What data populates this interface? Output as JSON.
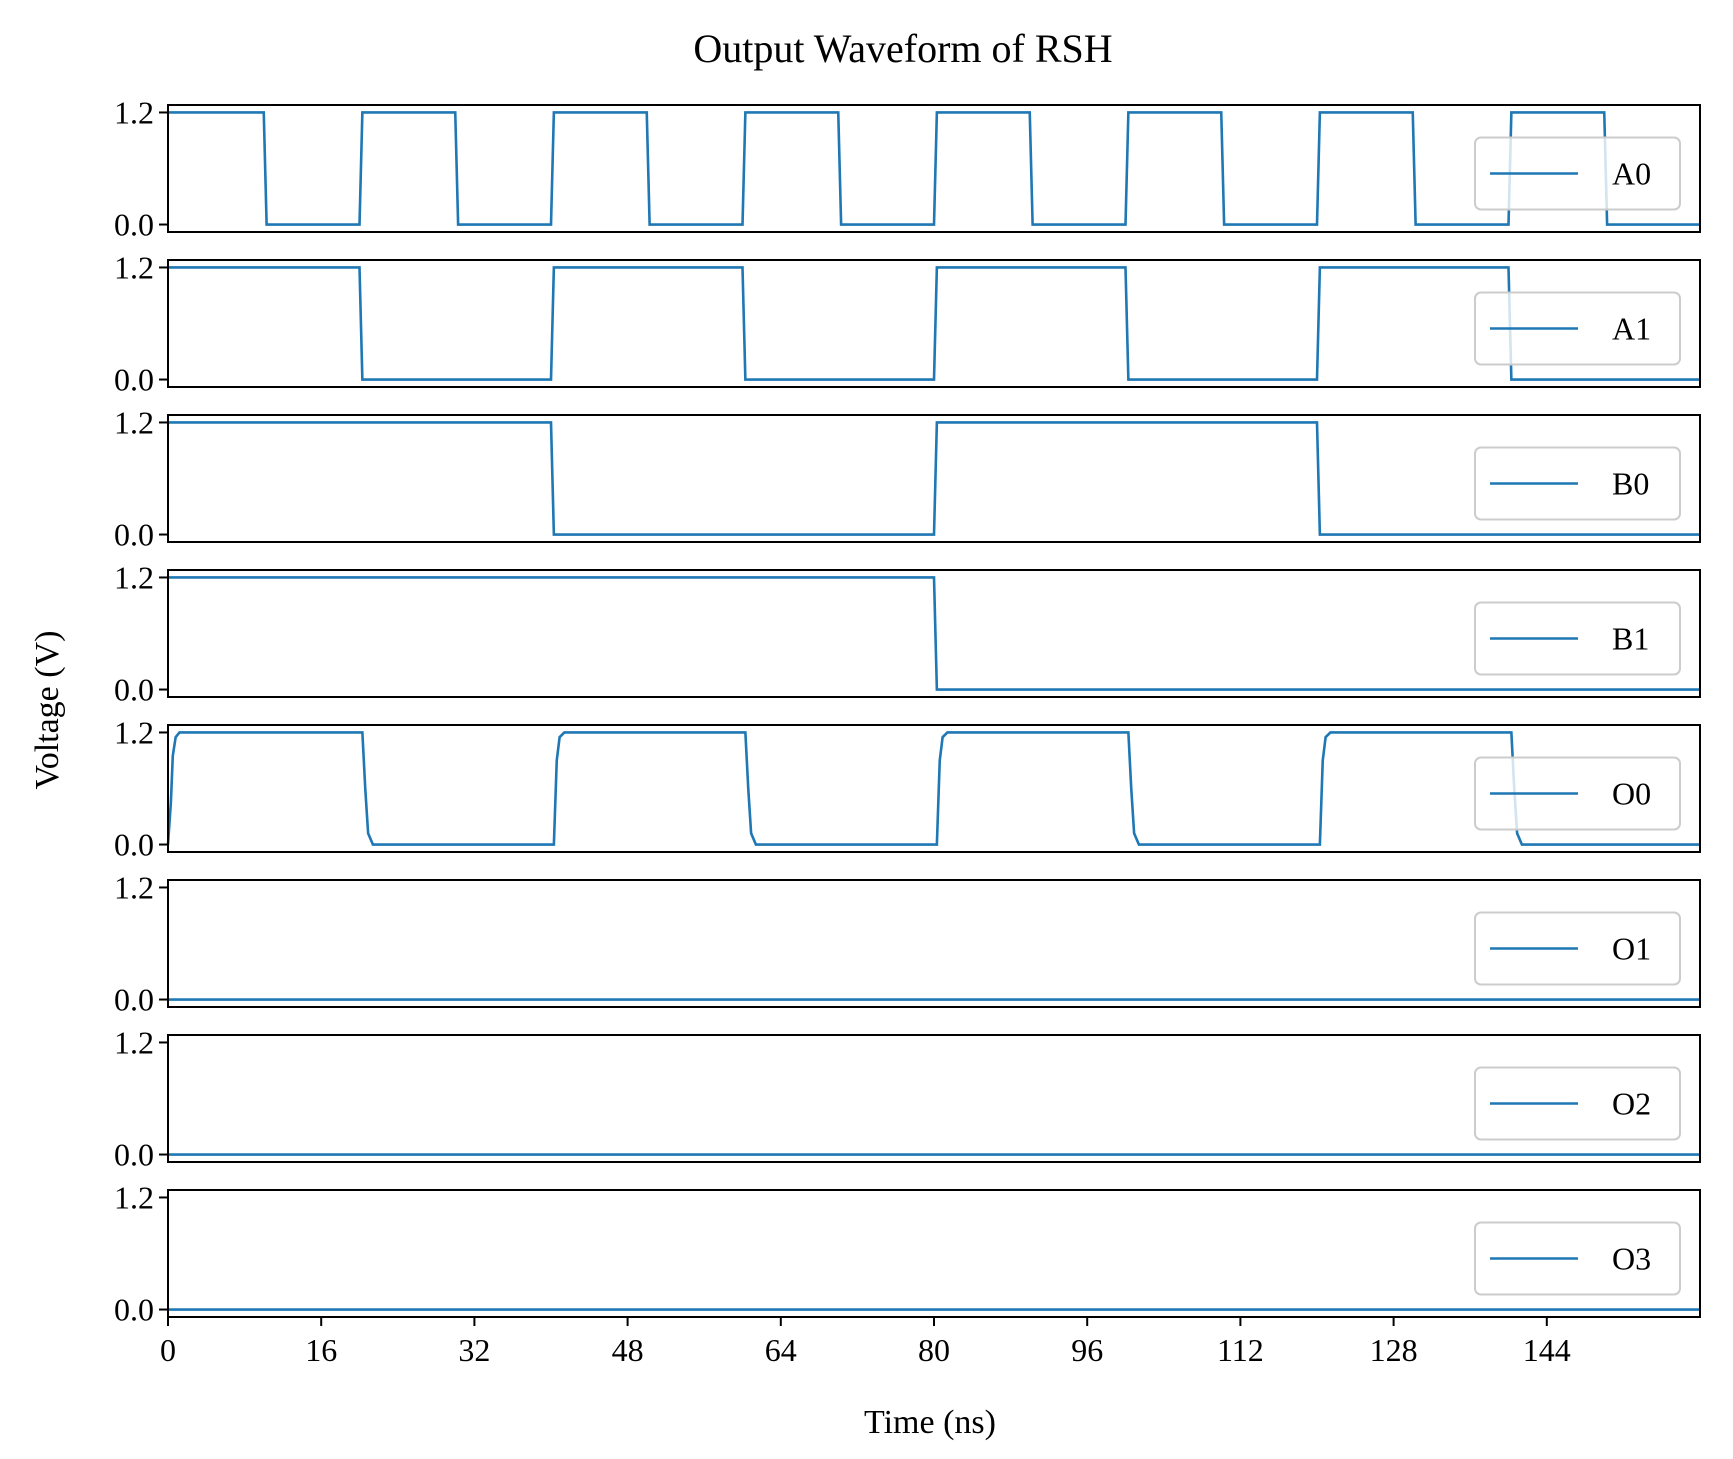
{
  "chart_data": {
    "type": "line",
    "title": "Output Waveform of RSH",
    "xlabel": "Time (ns)",
    "ylabel": "Voltage (V)",
    "xlim": [
      0,
      160
    ],
    "ylim": [
      -0.08,
      1.28
    ],
    "x_ticks": [
      0,
      16,
      32,
      48,
      64,
      80,
      96,
      112,
      128,
      144
    ],
    "x_tick_labels": [
      "0",
      "16",
      "32",
      "48",
      "64",
      "80",
      "96",
      "112",
      "128",
      "144"
    ],
    "y_ticks": [
      0.0,
      1.2
    ],
    "y_tick_labels": [
      "0.0",
      "1.2"
    ],
    "legend_position": "center right",
    "line_color": "#1f77b4",
    "series": [
      {
        "name": "A0",
        "x": [
          0,
          10,
          10.3,
          20,
          20.3,
          30,
          30.3,
          40,
          40.3,
          50,
          50.3,
          60,
          60.3,
          70,
          70.3,
          80,
          80.3,
          90,
          90.3,
          100,
          100.3,
          110,
          110.3,
          120,
          120.3,
          130,
          130.3,
          140,
          140.3,
          150,
          150.3,
          160
        ],
        "y": [
          1.2,
          1.2,
          0.0,
          0.0,
          1.2,
          1.2,
          0.0,
          0.0,
          1.2,
          1.2,
          0.0,
          0.0,
          1.2,
          1.2,
          0.0,
          0.0,
          1.2,
          1.2,
          0.0,
          0.0,
          1.2,
          1.2,
          0.0,
          0.0,
          1.2,
          1.2,
          0.0,
          0.0,
          1.2,
          1.2,
          0.0,
          0.0
        ]
      },
      {
        "name": "A1",
        "x": [
          0,
          20,
          20.3,
          40,
          40.3,
          60,
          60.3,
          80,
          80.3,
          100,
          100.3,
          120,
          120.3,
          140,
          140.3,
          160
        ],
        "y": [
          1.2,
          1.2,
          0.0,
          0.0,
          1.2,
          1.2,
          0.0,
          0.0,
          1.2,
          1.2,
          0.0,
          0.0,
          1.2,
          1.2,
          0.0,
          0.0
        ]
      },
      {
        "name": "B0",
        "x": [
          0,
          40,
          40.3,
          80,
          80.3,
          120,
          120.3,
          160
        ],
        "y": [
          1.2,
          1.2,
          0.0,
          0.0,
          1.2,
          1.2,
          0.0,
          0.0
        ]
      },
      {
        "name": "B1",
        "x": [
          0,
          80,
          80.3,
          160
        ],
        "y": [
          1.2,
          1.2,
          0.0,
          0.0
        ]
      },
      {
        "name": "O0",
        "x": [
          0,
          0.3,
          0.5,
          0.8,
          1.2,
          20.3,
          20.6,
          20.9,
          21.4,
          40.3,
          40.6,
          40.9,
          41.4,
          60.3,
          60.6,
          60.9,
          61.4,
          80.3,
          80.6,
          80.9,
          81.4,
          100.3,
          100.6,
          100.9,
          101.4,
          120.3,
          120.6,
          120.9,
          121.4,
          140.3,
          140.6,
          140.9,
          141.4,
          160
        ],
        "y": [
          0.0,
          0.45,
          0.95,
          1.15,
          1.2,
          1.2,
          0.6,
          0.12,
          0.0,
          0.0,
          0.9,
          1.15,
          1.2,
          1.2,
          0.6,
          0.12,
          0.0,
          0.0,
          0.9,
          1.15,
          1.2,
          1.2,
          0.6,
          0.12,
          0.0,
          0.0,
          0.9,
          1.15,
          1.2,
          1.2,
          0.6,
          0.12,
          0.0,
          0.0
        ]
      },
      {
        "name": "O1",
        "x": [
          0,
          160
        ],
        "y": [
          0.0,
          0.0
        ]
      },
      {
        "name": "O2",
        "x": [
          0,
          160
        ],
        "y": [
          0.0,
          0.0
        ]
      },
      {
        "name": "O3",
        "x": [
          0,
          160
        ],
        "y": [
          0.0,
          0.0
        ]
      }
    ]
  }
}
